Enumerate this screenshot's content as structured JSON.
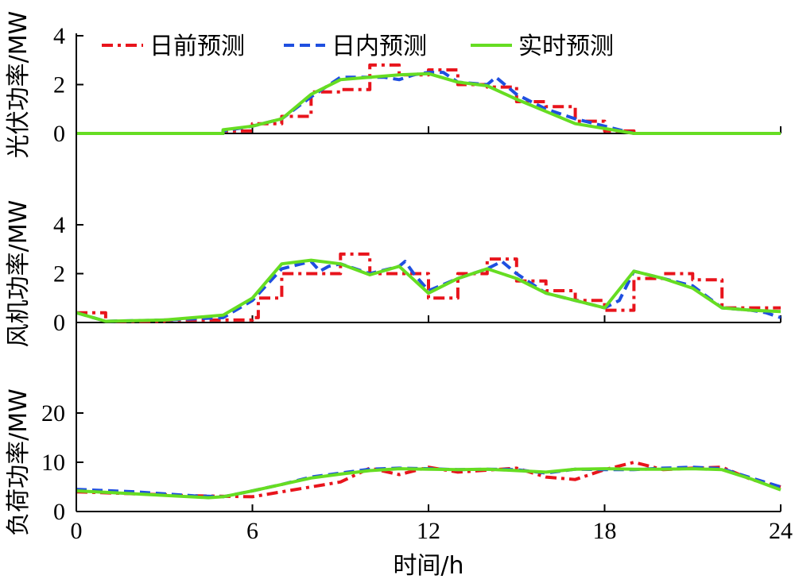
{
  "chart_data": {
    "type": "line",
    "xlabel": "时间/h",
    "xlim": [
      0,
      24
    ],
    "xticks": [
      0,
      6,
      12,
      18,
      24
    ],
    "legend": {
      "placement": "top-left",
      "entries": [
        {
          "label": "日前预测",
          "color": "#e8141c",
          "style": "dash-dot"
        },
        {
          "label": "日内预测",
          "color": "#1f4fe0",
          "style": "dashed"
        },
        {
          "label": "实时预测",
          "color": "#66dd22",
          "style": "solid"
        }
      ]
    },
    "panels": [
      {
        "ylabel": "光伏功率/MW",
        "ylim": [
          0,
          4
        ],
        "yticks": [
          0,
          2,
          4
        ],
        "series": [
          {
            "name": "日前预测",
            "color": "#e8141c",
            "style": "dash-dot",
            "x": [
              0,
              5,
              5,
              6,
              6,
              7,
              7,
              8,
              8,
              9,
              9,
              10,
              10,
              11,
              11,
              12,
              12,
              13,
              13,
              14,
              14,
              15,
              15,
              16,
              16,
              17,
              17,
              18,
              18,
              19,
              19,
              24
            ],
            "y": [
              0,
              0,
              0.1,
              0.1,
              0.4,
              0.4,
              0.7,
              0.7,
              1.7,
              1.7,
              1.8,
              1.8,
              2.8,
              2.8,
              2.4,
              2.4,
              2.6,
              2.6,
              2.0,
              2.0,
              1.9,
              1.9,
              1.3,
              1.3,
              1.1,
              1.1,
              0.5,
              0.5,
              0.1,
              0.1,
              0,
              0
            ]
          },
          {
            "name": "日内预测",
            "color": "#1f4fe0",
            "style": "dashed",
            "x": [
              0,
              5,
              5,
              6,
              7,
              8,
              9,
              10,
              10.5,
              11,
              11.5,
              12,
              12.5,
              13,
              14,
              14.3,
              15,
              16,
              17,
              18,
              19,
              24
            ],
            "y": [
              0,
              0,
              0.1,
              0.3,
              0.6,
              1.5,
              2.3,
              2.3,
              2.3,
              2.2,
              2.4,
              2.5,
              2.5,
              2.1,
              2.0,
              2.3,
              1.6,
              1.0,
              0.6,
              0.3,
              0,
              0
            ]
          },
          {
            "name": "实时预测",
            "color": "#66dd22",
            "style": "solid",
            "x": [
              0,
              5,
              5,
              6,
              7,
              8,
              9,
              10,
              11,
              12,
              13,
              14,
              15,
              16,
              17,
              18,
              19,
              24
            ],
            "y": [
              0,
              0,
              0.15,
              0.3,
              0.6,
              1.6,
              2.2,
              2.3,
              2.4,
              2.45,
              2.1,
              1.95,
              1.4,
              0.9,
              0.4,
              0.2,
              0,
              0
            ]
          }
        ]
      },
      {
        "ylabel": "风机功率/MW",
        "ylim": [
          0,
          4
        ],
        "yticks": [
          0,
          2,
          4
        ],
        "series": [
          {
            "name": "日前预测",
            "color": "#e8141c",
            "style": "dash-dot",
            "x": [
              0,
              1,
              1,
              3,
              3,
              6,
              6,
              6.2,
              6.2,
              7,
              7,
              9,
              9,
              10,
              10,
              12,
              12,
              13,
              13,
              14,
              14,
              15,
              15,
              16,
              16,
              17,
              17,
              18,
              18,
              19,
              19,
              20,
              20,
              21,
              21,
              22,
              22,
              24
            ],
            "y": [
              0.4,
              0.4,
              0.05,
              0.05,
              0.1,
              0.1,
              0.2,
              0.2,
              1.0,
              1.0,
              2.0,
              2.0,
              2.8,
              2.8,
              2.0,
              2.0,
              1.0,
              1.0,
              2.0,
              2.0,
              2.6,
              2.6,
              1.7,
              1.7,
              1.3,
              1.3,
              0.9,
              0.9,
              0.5,
              0.5,
              1.8,
              1.8,
              2.0,
              2.0,
              1.75,
              1.75,
              0.6,
              0.6
            ]
          },
          {
            "name": "日内预测",
            "color": "#1f4fe0",
            "style": "dashed",
            "x": [
              0,
              1,
              3,
              5,
              6,
              7,
              8,
              8.3,
              8.6,
              9,
              10,
              11,
              11.2,
              11.5,
              12,
              13,
              14,
              14.5,
              15,
              16,
              17,
              18,
              18.5,
              19,
              20,
              21,
              22,
              23,
              23.5,
              24
            ],
            "y": [
              0.4,
              0.05,
              0.1,
              0.2,
              0.9,
              2.2,
              2.5,
              2.1,
              2.3,
              2.4,
              2.0,
              2.3,
              2.5,
              2.0,
              1.3,
              1.8,
              2.2,
              2.5,
              2.0,
              1.2,
              0.9,
              0.6,
              0.9,
              2.1,
              1.8,
              1.5,
              0.6,
              0.5,
              0.4,
              0.2
            ]
          },
          {
            "name": "实时预测",
            "color": "#66dd22",
            "style": "solid",
            "x": [
              0,
              1,
              3,
              5,
              6,
              7,
              8,
              9,
              10,
              11,
              12,
              13,
              14,
              15,
              16,
              17,
              18,
              19,
              20,
              21,
              22,
              23,
              24
            ],
            "y": [
              0.4,
              0.05,
              0.1,
              0.3,
              1.0,
              2.4,
              2.55,
              2.4,
              1.95,
              2.3,
              1.2,
              1.8,
              2.2,
              1.8,
              1.2,
              0.9,
              0.6,
              2.1,
              1.8,
              1.4,
              0.6,
              0.5,
              0.45
            ]
          }
        ]
      },
      {
        "ylabel": "负荷功率/MW",
        "ylim": [
          0,
          20
        ],
        "yticks": [
          0,
          10,
          20
        ],
        "series": [
          {
            "name": "日前预测",
            "color": "#e8141c",
            "style": "dash-dot",
            "x": [
              0,
              4,
              4,
              6,
              6,
              7,
              7,
              9,
              9,
              10,
              10,
              11,
              11,
              12,
              12,
              13,
              13,
              15,
              15,
              16,
              16,
              17,
              17,
              18,
              18,
              19,
              19,
              20,
              20,
              21,
              21,
              22,
              22,
              23,
              23,
              24
            ],
            "y": [
              4,
              3.2,
              3.2,
              3.0,
              3.0,
              4.0,
              4.0,
              6.0,
              6.0,
              8.8,
              8.8,
              7.5,
              7.5,
              9.0,
              9.0,
              8.0,
              8.0,
              8.8,
              8.8,
              7.0,
              7.0,
              6.5,
              6.5,
              8.5,
              8.5,
              10.0,
              10.0,
              8.5,
              8.5,
              8.8,
              8.8,
              9.0,
              9.0,
              6.5,
              6.5,
              5.0
            ]
          },
          {
            "name": "日内预测",
            "color": "#1f4fe0",
            "style": "dashed",
            "x": [
              0,
              2,
              4,
              5,
              6,
              7,
              8,
              9,
              10,
              11,
              12,
              13,
              14,
              15,
              16,
              17,
              18,
              19,
              20,
              21,
              22,
              23,
              24
            ],
            "y": [
              4.5,
              4.0,
              3.2,
              3.0,
              4.2,
              5.5,
              7.0,
              7.8,
              8.6,
              8.8,
              8.7,
              8.5,
              8.6,
              8.5,
              7.8,
              8.6,
              8.5,
              8.5,
              8.8,
              9.0,
              8.7,
              6.8,
              5.0
            ]
          },
          {
            "name": "实时预测",
            "color": "#66dd22",
            "style": "solid",
            "x": [
              0,
              2,
              4.5,
              5,
              6,
              7,
              8,
              9,
              10,
              11,
              12,
              13,
              14,
              15,
              16,
              17,
              18,
              19,
              20,
              21,
              22,
              23,
              24
            ],
            "y": [
              4.2,
              3.6,
              2.8,
              3.0,
              4.2,
              5.5,
              6.8,
              7.6,
              8.3,
              8.7,
              8.6,
              8.5,
              8.6,
              8.3,
              8.0,
              8.6,
              8.7,
              8.6,
              8.6,
              8.7,
              8.5,
              6.6,
              4.4
            ]
          }
        ]
      }
    ]
  }
}
